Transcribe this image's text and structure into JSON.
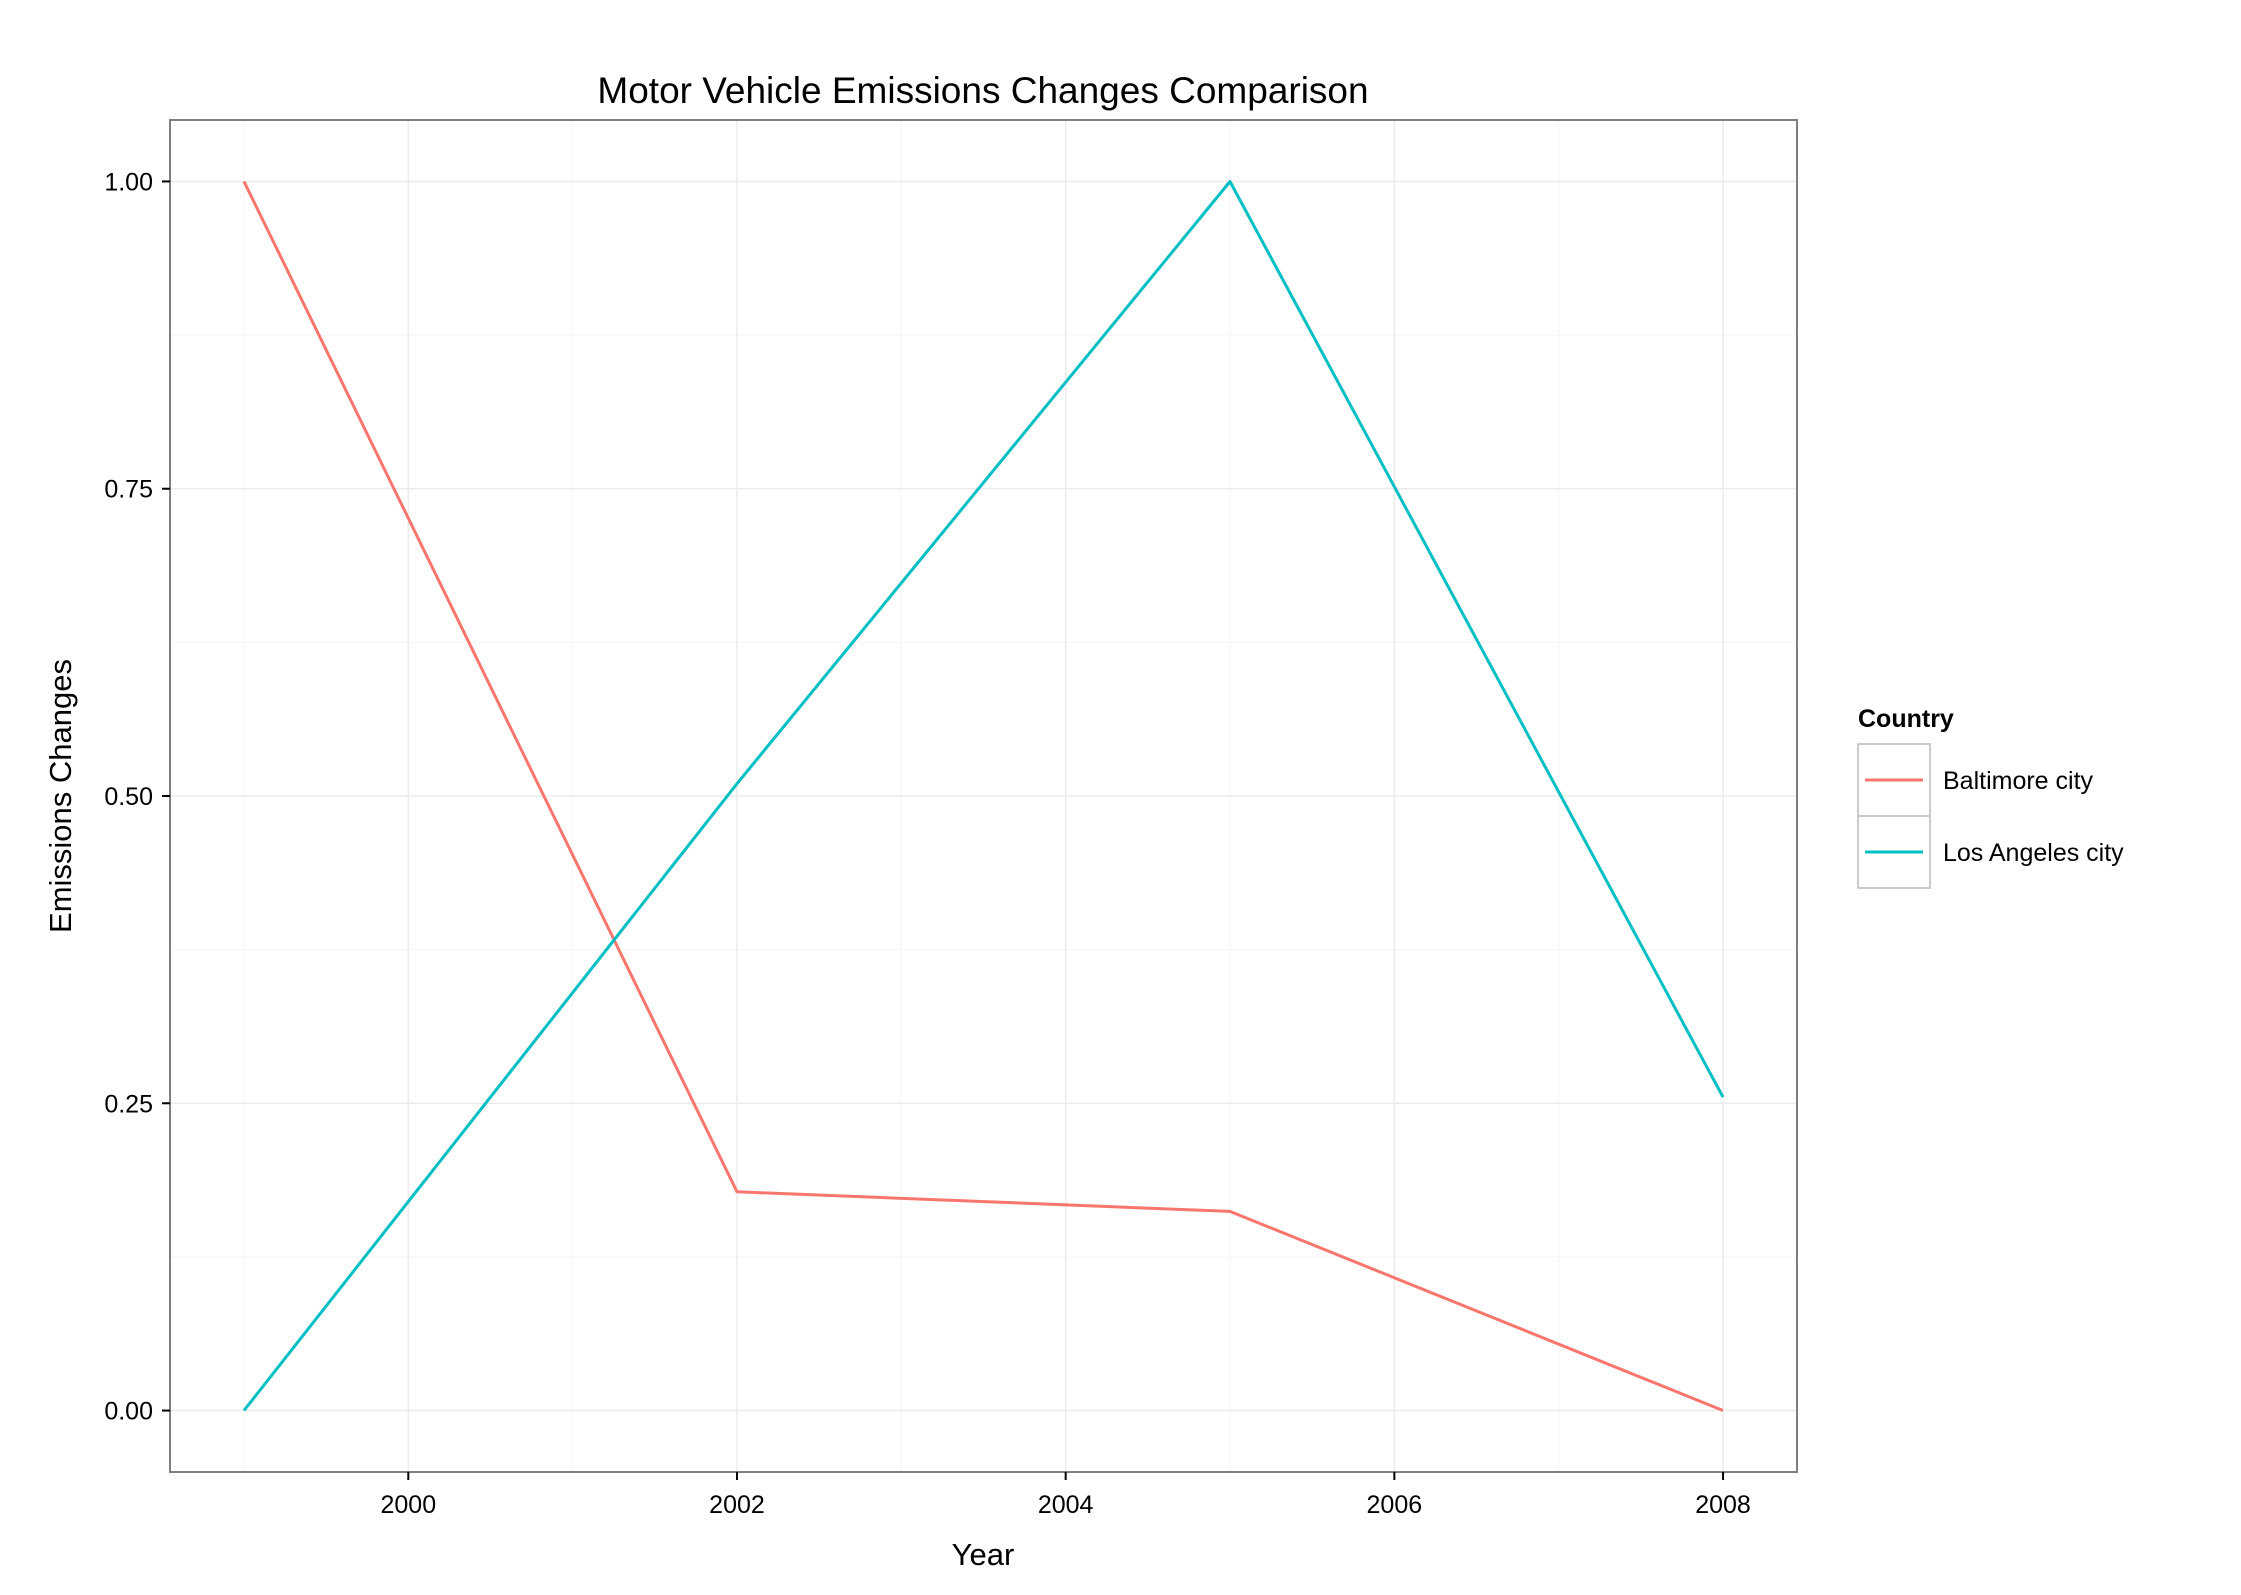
{
  "chart_data": {
    "type": "line",
    "title": "Motor Vehicle Emissions Changes Comparison",
    "xlabel": "Year",
    "ylabel": "Emissions Changes",
    "x": [
      1999,
      2002,
      2005,
      2008
    ],
    "xlim": [
      1998.55,
      2008.45
    ],
    "ylim": [
      -0.05,
      1.05
    ],
    "xticks": [
      2000,
      2002,
      2004,
      2006,
      2008
    ],
    "yticks": [
      0.0,
      0.25,
      0.5,
      0.75,
      1.0
    ],
    "xtick_labels": [
      "2000",
      "2002",
      "2004",
      "2006",
      "2008"
    ],
    "ytick_labels": [
      "0.00",
      "0.25",
      "0.50",
      "0.75",
      "1.00"
    ],
    "grid": true,
    "legend_title": "Country",
    "legend_position": "right",
    "series": [
      {
        "name": "Baltimore city",
        "color": "#F8766D",
        "values": [
          1.0,
          0.178,
          0.162,
          0.0
        ]
      },
      {
        "name": "Los Angeles city",
        "color": "#00BFC4",
        "values": [
          0.0,
          0.51,
          1.0,
          0.255
        ]
      }
    ]
  }
}
